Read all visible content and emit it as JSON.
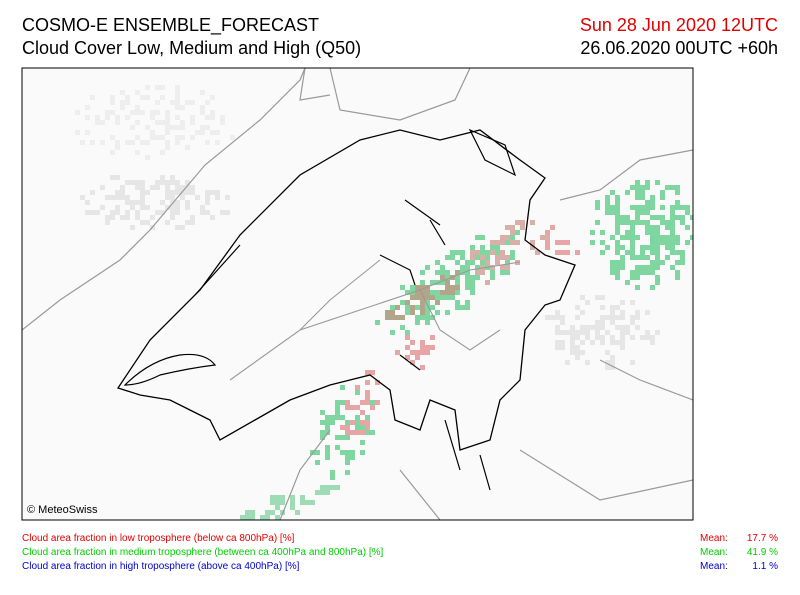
{
  "header": {
    "title": "COSMO-E ENSEMBLE_FORECAST",
    "subtitle": "Cloud Cover Low, Medium and High (Q50)",
    "valid": "Sun 28 Jun 2020 12UTC",
    "init": "26.06.2020 00UTC +60h"
  },
  "map": {
    "credit": "© MeteoSwiss"
  },
  "legend": [
    {
      "label": "Cloud area fraction in low troposphere (below ca 800hPa) [%]",
      "mean_label": "Mean:",
      "mean": "17.7 %"
    },
    {
      "label": "Cloud area fraction in medium troposphere (between ca 400hPa and 800hPa) [%]",
      "mean_label": "Mean:",
      "mean": "41.9 %"
    },
    {
      "label": "Cloud area fraction in high troposphere (above ca 400hPa) [%]",
      "mean_label": "Mean:",
      "mean": "1.1 %"
    }
  ]
}
